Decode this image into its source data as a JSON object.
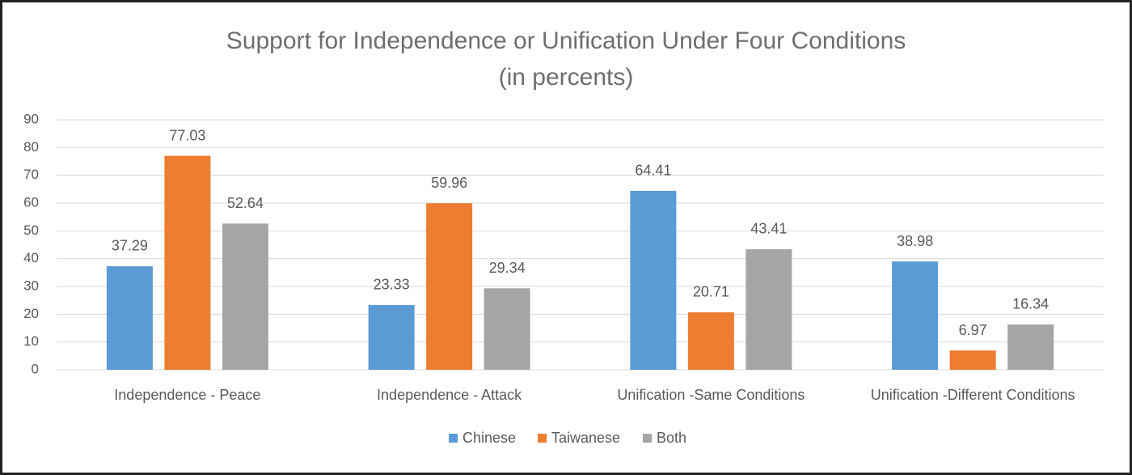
{
  "chart_data": {
    "type": "bar",
    "title": "Support for Independence or Unification Under Four Conditions",
    "subtitle": "(in percents)",
    "categories": [
      "Independence - Peace",
      "Independence - Attack",
      "Unification -Same Conditions",
      "Unification -Different Conditions"
    ],
    "series": [
      {
        "name": "Chinese",
        "color": "#5b9bd5",
        "values": [
          37.29,
          23.33,
          64.41,
          38.98
        ]
      },
      {
        "name": "Taiwanese",
        "color": "#ed7d31",
        "values": [
          77.03,
          59.96,
          20.71,
          6.97
        ]
      },
      {
        "name": "Both",
        "color": "#a5a5a5",
        "values": [
          52.64,
          29.34,
          43.41,
          16.34
        ]
      }
    ],
    "ylim": [
      0,
      90
    ],
    "yticks": [
      0,
      10,
      20,
      30,
      40,
      50,
      60,
      70,
      80,
      90
    ],
    "grid": true,
    "legend": "bottom"
  }
}
